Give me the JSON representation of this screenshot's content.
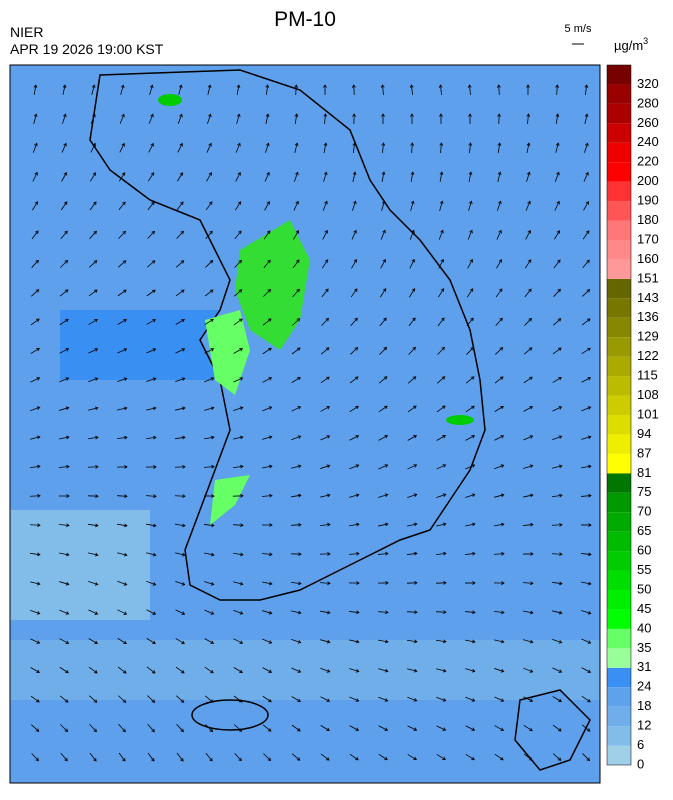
{
  "header": {
    "title": "PM-10",
    "agency": "NIER",
    "timestamp": "APR 19 2026 19:00 KST",
    "wind_scale": "5 m/s"
  },
  "legend": {
    "unit": "µg/m",
    "unit_superscript": "3",
    "ticks": [
      0,
      6,
      12,
      18,
      24,
      31,
      35,
      40,
      45,
      50,
      55,
      60,
      65,
      70,
      75,
      81,
      87,
      94,
      101,
      108,
      115,
      122,
      129,
      136,
      143,
      151,
      160,
      170,
      180,
      190,
      200,
      220,
      240,
      260,
      280,
      320
    ],
    "colors": [
      "#9fd0e8",
      "#82bdea",
      "#70aeea",
      "#5fa2ec",
      "#3a8ff2",
      "#99ff99",
      "#66ff66",
      "#00ff00",
      "#00ee00",
      "#00dd00",
      "#00cc00",
      "#00bb00",
      "#00aa00",
      "#009900",
      "#007700",
      "#ffff00",
      "#eeee00",
      "#dddd00",
      "#cccc00",
      "#bbbb00",
      "#aaaa00",
      "#999900",
      "#888800",
      "#777700",
      "#666600",
      "#ff9999",
      "#ff8888",
      "#ff7777",
      "#ff5555",
      "#ff3333",
      "#ff0000",
      "#ee0000",
      "#cc0000",
      "#aa0000",
      "#990000",
      "#770000"
    ]
  }
}
